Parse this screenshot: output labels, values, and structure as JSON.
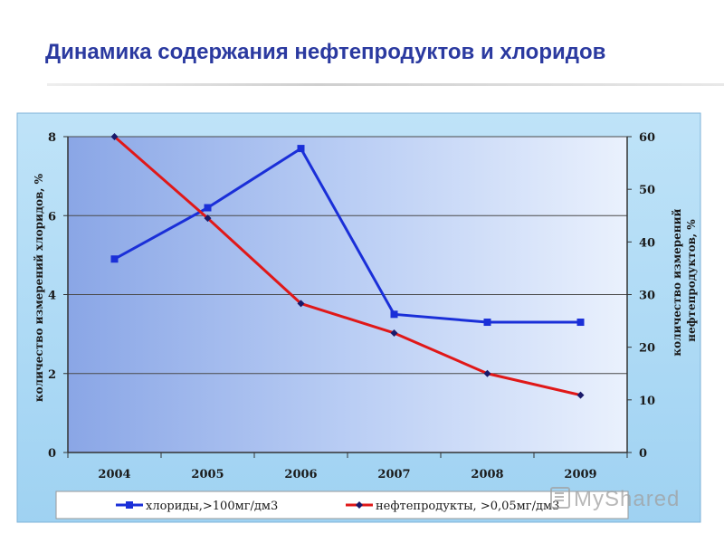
{
  "slide": {
    "title": "Динамика содержания  нефтепродуктов  и хлоридов"
  },
  "watermark": {
    "text": "MyShared"
  },
  "chart_data": {
    "type": "line",
    "categories": [
      "2004",
      "2005",
      "2006",
      "2007",
      "2008",
      "2009"
    ],
    "y_left": {
      "label": "количество измерений хлоридов, %",
      "ylim": [
        0,
        8
      ],
      "ticks": [
        0,
        2,
        4,
        6,
        8
      ]
    },
    "y_right": {
      "label_lines": [
        "количество измерений",
        "нефтепродуктов, %"
      ],
      "ylim": [
        0,
        60
      ],
      "ticks": [
        0,
        10,
        20,
        30,
        40,
        50,
        60
      ]
    },
    "grid": true,
    "legend_position": "bottom",
    "series": [
      {
        "name": "хлориды,>100мг/дм3",
        "axis": "left",
        "color": "#1a2fd8",
        "marker": "square",
        "values": [
          4.9,
          6.2,
          7.7,
          3.5,
          3.3,
          3.3
        ]
      },
      {
        "name": "нефтепродукты, >0,05мг/дм3",
        "axis": "right",
        "color": "#e01818",
        "marker": "diamond",
        "values": [
          60,
          44.5,
          28.3,
          22.7,
          15,
          10.9
        ]
      }
    ]
  }
}
